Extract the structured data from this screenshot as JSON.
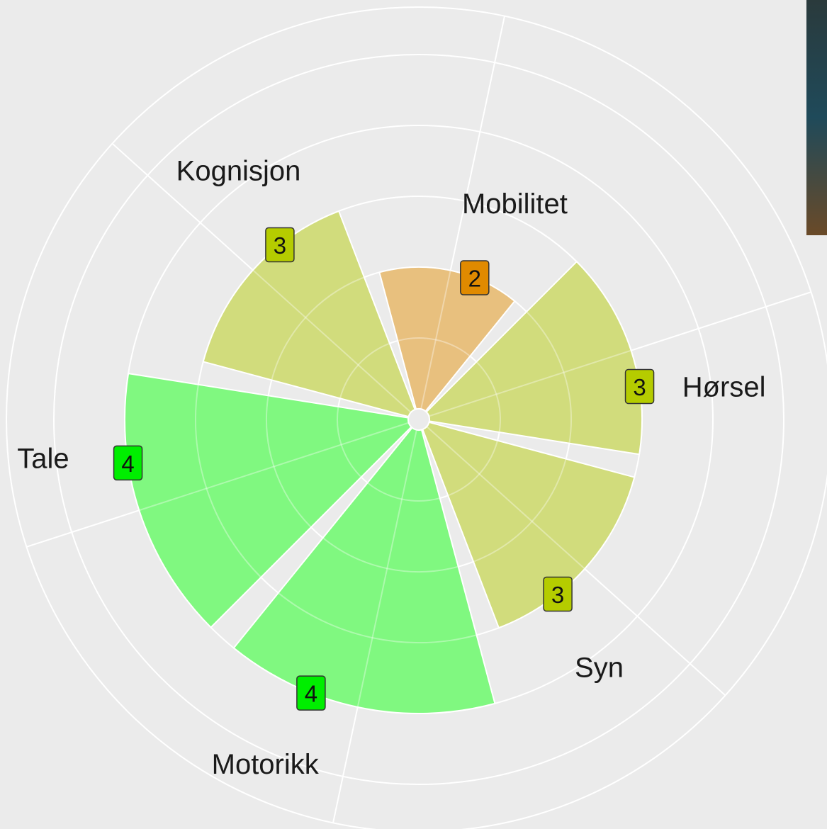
{
  "chart_data": {
    "type": "polar-area",
    "categories": [
      "Mobilitet",
      "Hørsel",
      "Syn",
      "Motorikk",
      "Tale",
      "Kognisjon"
    ],
    "values": [
      2,
      3,
      3,
      4,
      4,
      3
    ],
    "colors": [
      "#e8c07e",
      "#d1dc7c",
      "#d1dc7c",
      "#80f880",
      "#80f880",
      "#d1dc7c"
    ],
    "badge_colors": [
      "#e08a00",
      "#b5cc00",
      "#b5cc00",
      "#00ee00",
      "#00ee00",
      "#b5cc00"
    ],
    "ylim": [
      0,
      5.67
    ],
    "yticks": [
      1,
      2,
      3,
      4,
      5
    ],
    "grid": true
  }
}
